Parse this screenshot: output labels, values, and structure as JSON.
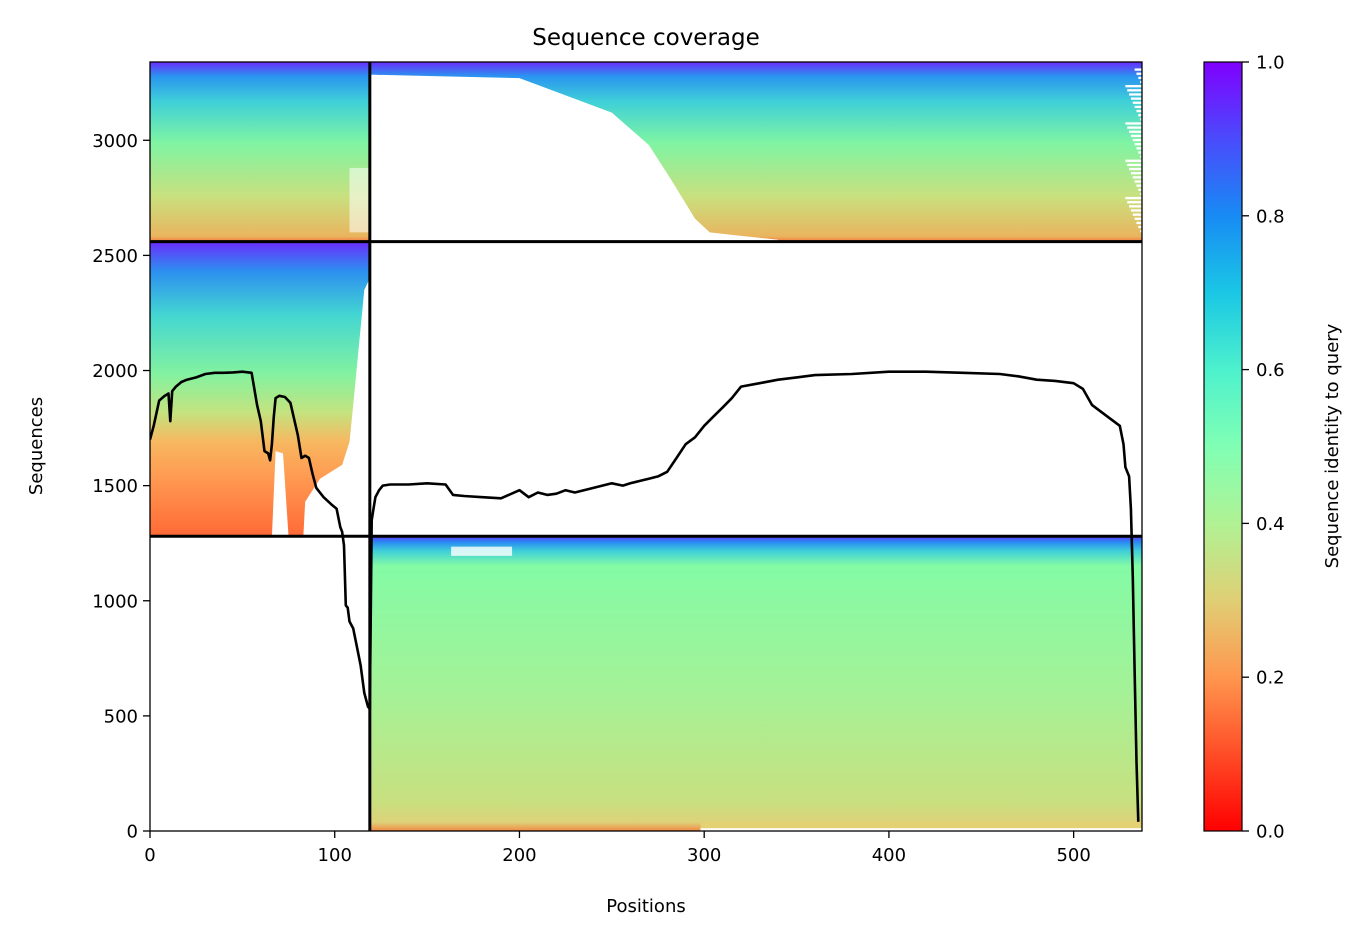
{
  "chart_data": {
    "type": "heatmap",
    "title": "Sequence coverage",
    "xlabel": "Positions",
    "ylabel": "Sequences",
    "xlim": [
      0,
      537
    ],
    "ylim": [
      0,
      3340
    ],
    "xticks": [
      "0",
      "100",
      "200",
      "300",
      "400",
      "500"
    ],
    "yticks": [
      "0",
      "500",
      "1000",
      "1500",
      "2000",
      "2500",
      "3000"
    ],
    "xtick_values": [
      0,
      100,
      200,
      300,
      400,
      500
    ],
    "ytick_values": [
      0,
      500,
      1000,
      1500,
      2000,
      2500,
      3000
    ],
    "colorbar": {
      "label": "Sequence identity to query",
      "range": [
        0.0,
        1.0
      ],
      "ticks": [
        "0.0",
        "0.2",
        "0.4",
        "0.6",
        "0.8",
        "1.0"
      ],
      "tick_values": [
        0.0,
        0.2,
        0.4,
        0.6,
        0.8,
        1.0
      ],
      "colormap": "rainbow_r"
    },
    "grid": false,
    "chain_boundaries_x": [
      119
    ],
    "chain_boundaries_y": [
      1280,
      2560
    ],
    "coverage_blocks": [
      {
        "x": [
          0,
          119
        ],
        "rows": [
          2560,
          3340
        ],
        "identity_bottom": 0.25,
        "identity_top": 0.95
      },
      {
        "x": [
          119,
          537
        ],
        "rows": [
          2560,
          3340
        ],
        "identity_bottom": 0.25,
        "identity_top": 0.95,
        "partial_left_coverage": true
      },
      {
        "x": [
          0,
          119
        ],
        "rows": [
          1280,
          2560
        ],
        "identity_bottom": 0.17,
        "identity_top": 0.93
      },
      {
        "x": [
          119,
          537
        ],
        "rows": [
          0,
          1280
        ],
        "identity_bottom": 0.25,
        "identity_top": 0.9
      }
    ],
    "coverage_line": {
      "color": "#000000",
      "x": [
        0,
        2,
        5,
        8,
        10,
        11,
        12,
        14,
        17,
        20,
        25,
        30,
        35,
        40,
        45,
        50,
        55,
        58,
        60,
        62,
        64,
        65,
        66,
        67,
        68,
        70,
        73,
        76,
        80,
        82,
        84,
        86,
        88,
        90,
        94,
        98,
        101,
        103,
        104,
        105,
        106,
        107,
        108,
        110,
        112,
        114,
        116,
        118,
        119,
        120,
        121,
        122,
        124,
        126,
        130,
        140,
        150,
        160,
        164,
        170,
        180,
        190,
        200,
        205,
        210,
        215,
        220,
        225,
        230,
        240,
        250,
        256,
        260,
        265,
        270,
        275,
        280,
        285,
        290,
        295,
        300,
        305,
        310,
        315,
        320,
        330,
        340,
        350,
        360,
        380,
        400,
        420,
        440,
        460,
        470,
        480,
        490,
        500,
        505,
        510,
        520,
        525,
        527,
        528,
        530,
        531,
        532,
        533,
        534,
        535
      ],
      "y": [
        1700,
        1760,
        1870,
        1890,
        1900,
        1780,
        1910,
        1930,
        1950,
        1960,
        1970,
        1985,
        1990,
        1990,
        1992,
        1995,
        1990,
        1850,
        1780,
        1650,
        1640,
        1610,
        1680,
        1800,
        1880,
        1890,
        1885,
        1860,
        1720,
        1620,
        1630,
        1620,
        1550,
        1490,
        1450,
        1420,
        1400,
        1320,
        1300,
        1240,
        980,
        970,
        910,
        880,
        800,
        720,
        600,
        540,
        530,
        1350,
        1400,
        1450,
        1480,
        1500,
        1505,
        1505,
        1510,
        1505,
        1460,
        1455,
        1450,
        1445,
        1480,
        1450,
        1470,
        1460,
        1465,
        1480,
        1470,
        1490,
        1510,
        1500,
        1510,
        1520,
        1530,
        1540,
        1560,
        1620,
        1680,
        1710,
        1760,
        1800,
        1840,
        1880,
        1930,
        1945,
        1960,
        1970,
        1980,
        1985,
        1995,
        1995,
        1990,
        1985,
        1975,
        1960,
        1955,
        1945,
        1920,
        1850,
        1790,
        1760,
        1680,
        1580,
        1540,
        1400,
        1100,
        700,
        300,
        40
      ]
    }
  }
}
